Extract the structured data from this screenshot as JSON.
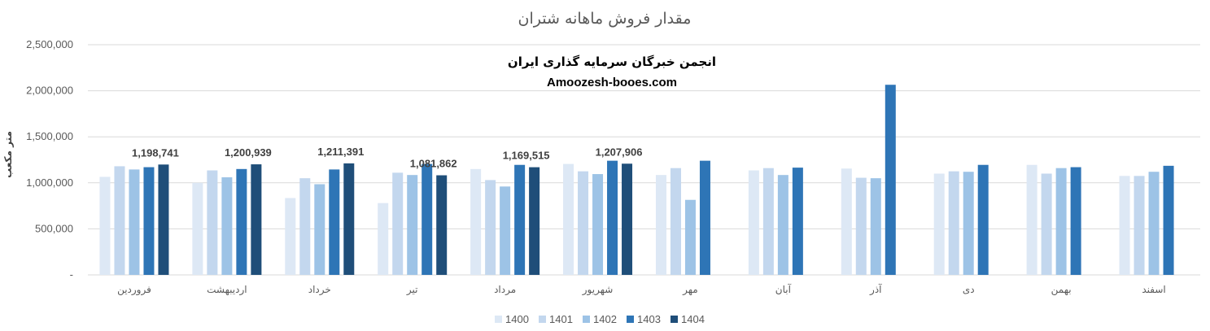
{
  "chart_data": {
    "type": "bar",
    "title": "مقدار فروش ماهانه شتران",
    "ylabel": "متر مکعب",
    "watermark": {
      "line1": "انجمن خبرگان سرمایه گذاری ایران",
      "line2": "Amoozesh-booes.com"
    },
    "ylim": [
      0,
      2500000
    ],
    "y_ticks": [
      {
        "value": 0,
        "label": "-"
      },
      {
        "value": 500000,
        "label": "500,000"
      },
      {
        "value": 1000000,
        "label": "1,000,000"
      },
      {
        "value": 1500000,
        "label": "1,500,000"
      },
      {
        "value": 2000000,
        "label": "2,000,000"
      },
      {
        "value": 2500000,
        "label": "2,500,000"
      }
    ],
    "grid": true,
    "legend_position": "bottom",
    "categories": [
      "فروردین",
      "اردیبهشت",
      "خرداد",
      "تیر",
      "مرداد",
      "شهریور",
      "مهر",
      "آبان",
      "آذر",
      "دی",
      "بهمن",
      "اسفند"
    ],
    "series": [
      {
        "name": "1400",
        "color": "#dde8f5",
        "values": [
          1065000,
          1000000,
          835000,
          780000,
          1150000,
          1205000,
          1085000,
          1135000,
          1155000,
          1100000,
          1195000,
          1075000
        ]
      },
      {
        "name": "1401",
        "color": "#c3d7ee",
        "values": [
          1180000,
          1135000,
          1050000,
          1110000,
          1030000,
          1125000,
          1160000,
          1160000,
          1055000,
          1125000,
          1100000,
          1075000
        ]
      },
      {
        "name": "1402",
        "color": "#9dc3e6",
        "values": [
          1145000,
          1060000,
          985000,
          1085000,
          960000,
          1095000,
          815000,
          1085000,
          1050000,
          1120000,
          1160000,
          1120000
        ]
      },
      {
        "name": "1403",
        "color": "#2e75b6",
        "values": [
          1170000,
          1150000,
          1145000,
          1205000,
          1195000,
          1240000,
          1240000,
          1165000,
          2065000,
          1195000,
          1170000,
          1185000
        ]
      },
      {
        "name": "1404",
        "color": "#1f4e79",
        "values": [
          1198741,
          1200939,
          1211391,
          1081862,
          1169515,
          1207906,
          null,
          null,
          null,
          null,
          null,
          null
        ]
      }
    ],
    "data_labels": [
      {
        "category_index": 0,
        "series_index": 4,
        "text": "1,198,741"
      },
      {
        "category_index": 1,
        "series_index": 4,
        "text": "1,200,939"
      },
      {
        "category_index": 2,
        "series_index": 4,
        "text": "1,211,391"
      },
      {
        "category_index": 3,
        "series_index": 4,
        "text": "1,081,862"
      },
      {
        "category_index": 4,
        "series_index": 4,
        "text": "1,169,515"
      },
      {
        "category_index": 5,
        "series_index": 4,
        "text": "1,207,906"
      }
    ]
  }
}
